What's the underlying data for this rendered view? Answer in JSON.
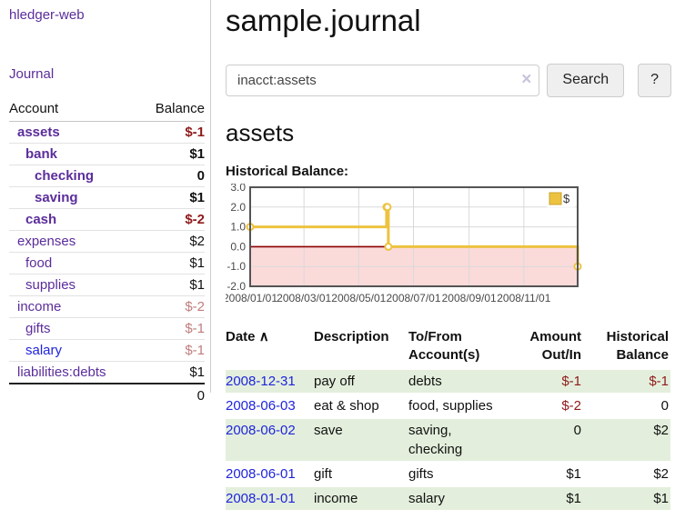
{
  "brand": "hledger-web",
  "sidebar": {
    "nav_journal": "Journal",
    "accounts_table": {
      "col_account": "Account",
      "col_balance": "Balance",
      "rows": [
        {
          "account": "assets",
          "balance": "$-1"
        },
        {
          "account": "bank",
          "balance": "$1"
        },
        {
          "account": "checking",
          "balance": "0"
        },
        {
          "account": "saving",
          "balance": "$1"
        },
        {
          "account": "cash",
          "balance": "$-2"
        },
        {
          "account": "expenses",
          "balance": "$2"
        },
        {
          "account": "food",
          "balance": "$1"
        },
        {
          "account": "supplies",
          "balance": "$1"
        },
        {
          "account": "income",
          "balance": "$-2"
        },
        {
          "account": "gifts",
          "balance": "$-1"
        },
        {
          "account": "salary",
          "balance": "$-1"
        },
        {
          "account": "liabilities:debts",
          "balance": "$1"
        }
      ],
      "total": "0"
    }
  },
  "main": {
    "title": "sample.journal",
    "search": {
      "value": "inacct:assets",
      "clear_icon": "×",
      "search_button": "Search",
      "help_button": "?"
    },
    "account_heading": "assets",
    "chart_title": "Historical Balance:"
  },
  "chart_data": {
    "type": "line",
    "title": "Historical Balance",
    "series": [
      {
        "name": "$",
        "color": "#edc240",
        "steps": true,
        "points": [
          [
            "2008-01-01",
            1
          ],
          [
            "2008-06-01",
            2
          ],
          [
            "2008-06-02",
            2
          ],
          [
            "2008-06-03",
            0
          ],
          [
            "2008-12-31",
            -1
          ]
        ]
      }
    ],
    "x_ticks": [
      "2008/01/01",
      "2008/03/01",
      "2008/05/01",
      "2008/07/01",
      "2008/09/01",
      "2008/11/01"
    ],
    "y_ticks": [
      3.0,
      2.0,
      1.0,
      0.0,
      -1.0,
      -2.0
    ],
    "xlim": [
      "2008-01-01",
      "2008-12-31"
    ],
    "ylim": [
      -2,
      3
    ],
    "grid": true,
    "legend_position": "top-right",
    "negative_region_color": "#fbdada",
    "zero_line_color": "#8b0000"
  },
  "register": {
    "headers": {
      "date": "Date",
      "sort_icon": "∧",
      "description": "Description",
      "accounts": "To/From Account(s)",
      "amount": "Amount Out/In",
      "balance": "Historical Balance"
    },
    "rows": [
      {
        "date": "2008-12-31",
        "description": "pay off",
        "accounts": "debts",
        "amount": "$-1",
        "balance": "$-1"
      },
      {
        "date": "2008-06-03",
        "description": "eat & shop",
        "accounts": "food, supplies",
        "amount": "$-2",
        "balance": "0"
      },
      {
        "date": "2008-06-02",
        "description": "save",
        "accounts": "saving, checking",
        "amount": "0",
        "balance": "$2"
      },
      {
        "date": "2008-06-01",
        "description": "gift",
        "accounts": "gifts",
        "amount": "$1",
        "balance": "$2"
      },
      {
        "date": "2008-01-01",
        "description": "income",
        "accounts": "salary",
        "amount": "$1",
        "balance": "$1"
      }
    ]
  }
}
